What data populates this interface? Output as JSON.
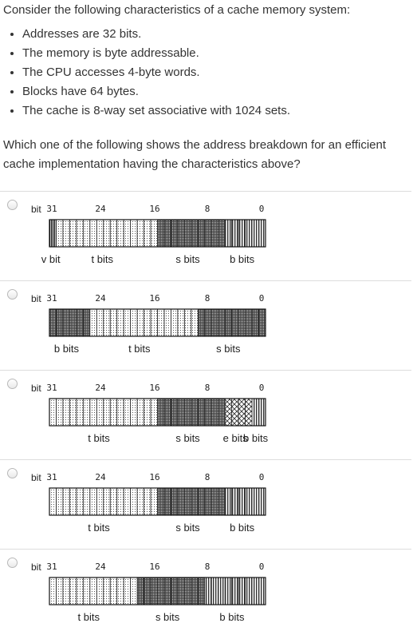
{
  "question": {
    "intro": "Consider the following characteristics of a cache memory system:",
    "bullets": [
      "Addresses are 32 bits.",
      "The memory is byte addressable.",
      "The CPU accesses 4-byte words.",
      "Blocks have 64 bytes.",
      "The cache is 8-way set associative with 1024 sets."
    ],
    "prompt": "Which one of the following shows the address breakdown for an efficient cache implementation having the characteristics above?"
  },
  "bit_scale": {
    "word": "bit",
    "ticks": [
      "31",
      "24",
      "16",
      "8",
      "0"
    ]
  },
  "options": [
    {
      "fields": [
        {
          "label": "v bit",
          "msb": 31,
          "lsb": 31,
          "pattern": "bars"
        },
        {
          "label": "t bits",
          "msb": 30,
          "lsb": 16,
          "pattern": "dots"
        },
        {
          "label": "s bits",
          "msb": 15,
          "lsb": 6,
          "pattern": "dense"
        },
        {
          "label": "b bits",
          "msb": 5,
          "lsb": 0,
          "pattern": "vlines"
        }
      ]
    },
    {
      "fields": [
        {
          "label": "b bits",
          "msb": 31,
          "lsb": 26,
          "pattern": "dense"
        },
        {
          "label": "t bits",
          "msb": 25,
          "lsb": 10,
          "pattern": "dots"
        },
        {
          "label": "s bits",
          "msb": 9,
          "lsb": 0,
          "pattern": "dense"
        }
      ]
    },
    {
      "fields": [
        {
          "label": "t bits",
          "msb": 31,
          "lsb": 16,
          "pattern": "dots"
        },
        {
          "label": "s bits",
          "msb": 15,
          "lsb": 6,
          "pattern": "dense"
        },
        {
          "label": "e bits",
          "msb": 5,
          "lsb": 2,
          "pattern": "cross"
        },
        {
          "label": "b bits",
          "msb": 1,
          "lsb": 0,
          "pattern": "vlines"
        }
      ]
    },
    {
      "fields": [
        {
          "label": "t bits",
          "msb": 31,
          "lsb": 16,
          "pattern": "dots"
        },
        {
          "label": "s bits",
          "msb": 15,
          "lsb": 6,
          "pattern": "dense"
        },
        {
          "label": "b bits",
          "msb": 5,
          "lsb": 0,
          "pattern": "vlines"
        }
      ]
    },
    {
      "fields": [
        {
          "label": "t bits",
          "msb": 31,
          "lsb": 19,
          "pattern": "dots"
        },
        {
          "label": "s bits",
          "msb": 18,
          "lsb": 9,
          "pattern": "dense"
        },
        {
          "label": "b bits",
          "msb": 8,
          "lsb": 0,
          "pattern": "vlines"
        }
      ]
    }
  ]
}
